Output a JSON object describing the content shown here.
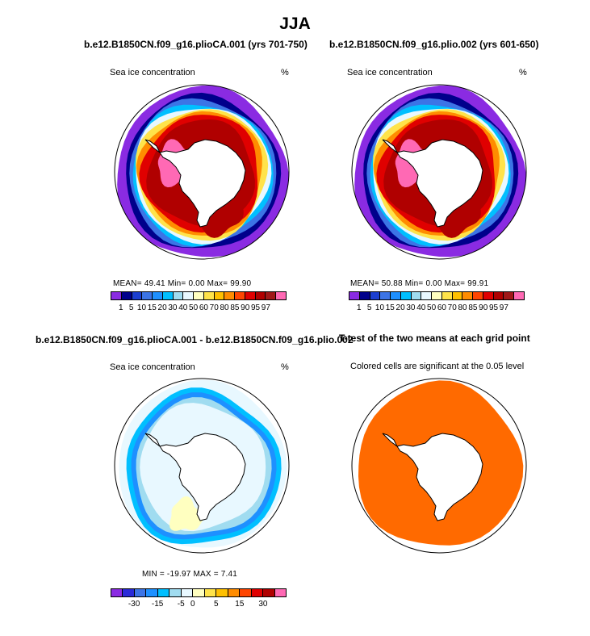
{
  "figure_title": "JJA",
  "colors": {
    "sic_palette": [
      "#8a2be2",
      "#00008b",
      "#1c3fd0",
      "#3c74e6",
      "#1e90ff",
      "#00bfff",
      "#a0dcf0",
      "#e8f8ff",
      "#ffffc0",
      "#ffe34a",
      "#ffc000",
      "#ff8c00",
      "#ff4500",
      "#e00000",
      "#b00000",
      "#a01818",
      "#ff69b4"
    ],
    "diff_palette": [
      "#8a2be2",
      "#2a2ad8",
      "#3c74e6",
      "#1e90ff",
      "#00bfff",
      "#a0dcf0",
      "#e8f8ff",
      "#ffffc0",
      "#ffe34a",
      "#ffc000",
      "#ff8c00",
      "#ff4500",
      "#e00000",
      "#b00000",
      "#ff69b4"
    ],
    "ttest_fill": "#ff6a00"
  },
  "panels": {
    "top_left": {
      "title": "b.e12.B1850CN.f09_g16.plioCA.001 (yrs 701-750)",
      "left_label": "Sea ice concentration",
      "right_label": "%",
      "stats": "MEAN=  49.41  Min=    0.00  Max=  99.90"
    },
    "top_right": {
      "title": "b.e12.B1850CN.f09_g16.plio.002 (yrs 601-650)",
      "left_label": "Sea ice concentration",
      "right_label": "%",
      "stats": "MEAN=  50.88  Min=    0.00  Max=  99.91"
    },
    "bottom_left": {
      "title": "b.e12.B1850CN.f09_g16.plioCA.001 - b.e12.B1850CN.f09_g16.plio.002",
      "left_label": "Sea ice concentration",
      "right_label": "%",
      "stats": "MIN = -19.97  MAX =   7.41"
    },
    "bottom_right": {
      "title": "T-test of the two means at each grid point",
      "subtitle": "Colored cells are significant at the 0.05 level"
    }
  },
  "chart_data": [
    {
      "type": "heatmap",
      "title": "b.e12.B1850CN.f09_g16.plioCA.001 (yrs 701-750)",
      "variable": "Sea ice concentration",
      "units": "%",
      "colorbar_levels": [
        "1",
        "5",
        "10",
        "15",
        "20",
        "30",
        "40",
        "50",
        "60",
        "70",
        "80",
        "85",
        "90",
        "95",
        "97"
      ],
      "mean": 49.41,
      "min": 0.0,
      "max": 99.9
    },
    {
      "type": "heatmap",
      "title": "b.e12.B1850CN.f09_g16.plio.002 (yrs 601-650)",
      "variable": "Sea ice concentration",
      "units": "%",
      "colorbar_levels": [
        "1",
        "5",
        "10",
        "15",
        "20",
        "30",
        "40",
        "50",
        "60",
        "70",
        "80",
        "85",
        "90",
        "95",
        "97"
      ],
      "mean": 50.88,
      "min": 0.0,
      "max": 99.91
    },
    {
      "type": "heatmap",
      "title": "b.e12.B1850CN.f09_g16.plioCA.001 - b.e12.B1850CN.f09_g16.plio.002",
      "variable": "Sea ice concentration",
      "units": "%",
      "colorbar_labels": [
        "-30",
        "-15",
        "-5",
        "0",
        "5",
        "15",
        "30"
      ],
      "min": -19.97,
      "max": 7.41
    },
    {
      "type": "heatmap",
      "title": "T-test of the two means at each grid point",
      "note": "Colored cells are significant at the 0.05 level"
    }
  ]
}
